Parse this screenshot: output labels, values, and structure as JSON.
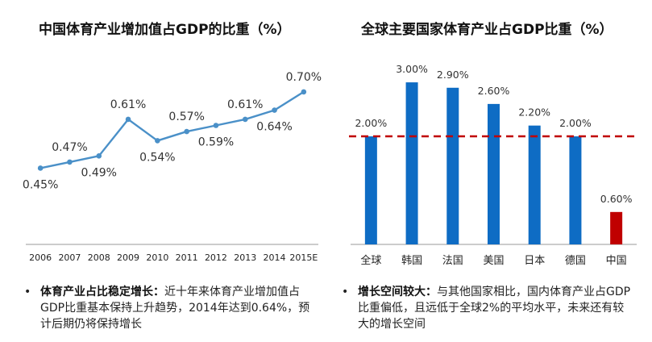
{
  "left_chart": {
    "title": "中国体育产业增加值占GDP的比重（%）",
    "chart_data": {
      "type": "line",
      "title": "中国体育产业增加值占GDP的比重（%）",
      "categories": [
        "2006",
        "2007",
        "2008",
        "2009",
        "2010",
        "2011",
        "2012",
        "2013",
        "2014",
        "2015E"
      ],
      "values": [
        0.45,
        0.47,
        0.49,
        0.61,
        0.54,
        0.57,
        0.59,
        0.61,
        0.64,
        0.7
      ],
      "labels": [
        "0.45%",
        "0.47%",
        "0.49%",
        "0.61%",
        "0.54%",
        "0.57%",
        "0.59%",
        "0.61%",
        "0.64%",
        "0.70%"
      ],
      "label_position": [
        "below",
        "above",
        "below",
        "above",
        "below",
        "above",
        "below",
        "above",
        "below",
        "above"
      ],
      "ylim": [
        0.2,
        0.75
      ],
      "color": "#4a90c8",
      "grid": false
    }
  },
  "right_chart": {
    "title": "全球主要国家体育产业占GDP比重（%）",
    "chart_data": {
      "type": "bar",
      "title": "全球主要国家体育产业占GDP比重（%）",
      "categories": [
        "全球",
        "韩国",
        "法国",
        "美国",
        "日本",
        "德国",
        "中国"
      ],
      "values": [
        2.0,
        3.0,
        2.9,
        2.6,
        2.2,
        2.0,
        0.6
      ],
      "labels": [
        "2.00%",
        "3.00%",
        "2.90%",
        "2.60%",
        "2.20%",
        "2.00%",
        "0.60%"
      ],
      "colors": [
        "#0e6cc4",
        "#0e6cc4",
        "#0e6cc4",
        "#0e6cc4",
        "#0e6cc4",
        "#0e6cc4",
        "#c00000"
      ],
      "reference_line": {
        "value": 2.0,
        "color": "#c00000",
        "style": "dashed"
      },
      "ylim": [
        0,
        3.3
      ],
      "grid": false
    }
  },
  "bullets": {
    "left": {
      "marker": "•",
      "head": "体育产业占比稳定增长：",
      "body": "近十年来体育产业增加值占GDP比重基本保持上升趋势，2014年达到0.64%，预计后期仍将保持增长"
    },
    "right": {
      "marker": "•",
      "head": "增长空间较大：",
      "body": "与其他国家相比，国内体育产业占GDP比重偏低，且远低于全球2%的平均水平，未来还有较大的增长空间"
    }
  }
}
